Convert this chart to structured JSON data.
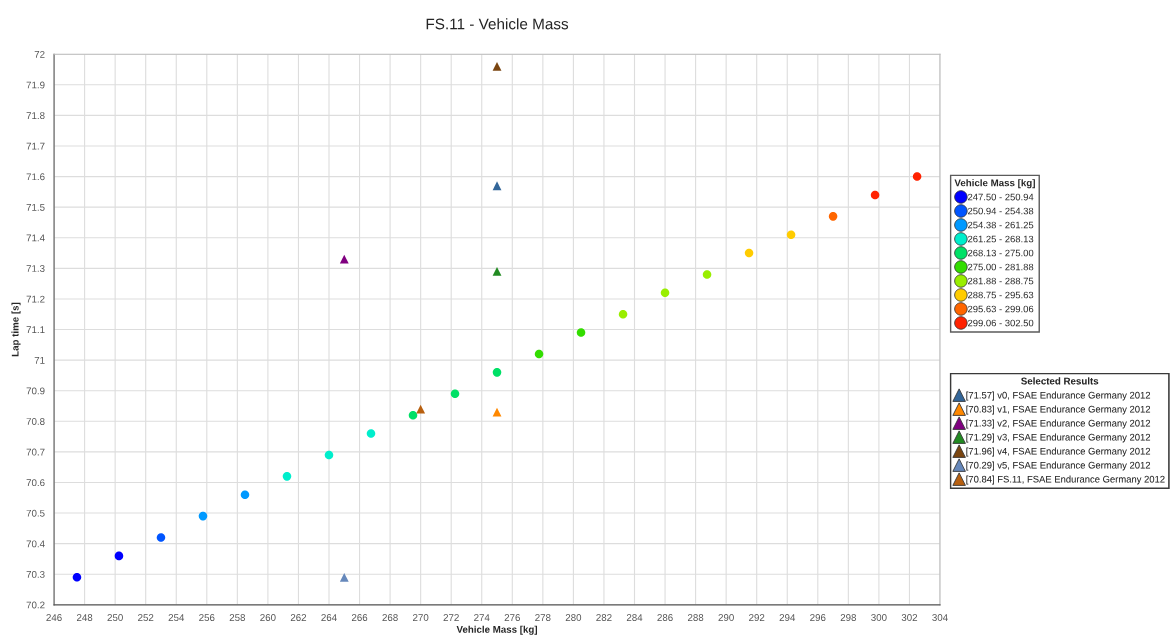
{
  "chart_data": {
    "type": "scatter",
    "title": "FS.11 - Vehicle Mass",
    "xlabel": "Vehicle Mass [kg]",
    "ylabel": "Lap time [s]",
    "legend_title": [
      "Vehicle Mass [kg]",
      "Selected Results"
    ],
    "legend": "right",
    "grid": true,
    "xlim": [
      246,
      304
    ],
    "xticks": [
      246,
      248,
      250,
      252,
      254,
      256,
      258,
      260,
      262,
      264,
      266,
      268,
      270,
      272,
      274,
      276,
      278,
      280,
      282,
      284,
      286,
      288,
      290,
      292,
      294,
      296,
      298,
      300,
      302,
      304
    ],
    "ylim": [
      70.2,
      72
    ],
    "yticks": [
      70.2,
      70.3,
      70.4,
      70.5,
      70.6,
      70.7,
      70.8,
      70.9,
      71,
      71.1,
      71.2,
      71.3,
      71.4,
      71.5,
      71.6,
      71.7,
      71.8,
      71.9,
      72
    ],
    "series": [
      {
        "name": "247.50 - 250.94",
        "color": "#0000ff",
        "marker": "circle",
        "x": [
          247.5,
          250.25
        ],
        "values": [
          70.29,
          70.36
        ]
      },
      {
        "name": "250.94 - 254.38",
        "color": "#0055ff",
        "marker": "circle",
        "x": [
          253.0
        ],
        "values": [
          70.42
        ]
      },
      {
        "name": "254.38 - 261.25",
        "color": "#0099ff",
        "marker": "circle",
        "x": [
          255.75,
          258.5
        ],
        "values": [
          70.49,
          70.56
        ]
      },
      {
        "name": "261.25 - 268.13",
        "color": "#00eecc",
        "marker": "circle",
        "x": [
          261.25,
          264.0,
          266.75
        ],
        "values": [
          70.62,
          70.69,
          70.76
        ]
      },
      {
        "name": "268.13 - 275.00",
        "color": "#00e066",
        "marker": "circle",
        "x": [
          269.5,
          272.25,
          275.0
        ],
        "values": [
          70.82,
          70.89,
          70.96
        ]
      },
      {
        "name": "275.00 - 281.88",
        "color": "#33dd00",
        "marker": "circle",
        "x": [
          277.75,
          280.5
        ],
        "values": [
          71.02,
          71.09
        ]
      },
      {
        "name": "281.88 - 288.75",
        "color": "#99ee00",
        "marker": "circle",
        "x": [
          283.25,
          286.0,
          288.75
        ],
        "values": [
          71.15,
          71.22,
          71.28
        ]
      },
      {
        "name": "288.75 - 295.63",
        "color": "#ffcc00",
        "marker": "circle",
        "x": [
          291.5,
          294.25
        ],
        "values": [
          71.35,
          71.41
        ]
      },
      {
        "name": "295.63 - 299.06",
        "color": "#ff6600",
        "marker": "circle",
        "x": [
          297.0
        ],
        "values": [
          71.47
        ]
      },
      {
        "name": "299.06 - 302.50",
        "color": "#ff2200",
        "marker": "circle",
        "x": [
          299.75,
          302.5
        ],
        "values": [
          71.54,
          71.6
        ]
      },
      {
        "name": "[71.57] v0, FSAE Endurance Germany 2012",
        "color": "#336699",
        "marker": "triangle",
        "x": [
          275.0
        ],
        "values": [
          71.57
        ]
      },
      {
        "name": "[70.83] v1, FSAE Endurance Germany 2012",
        "color": "#ff8800",
        "marker": "triangle",
        "x": [
          275.0
        ],
        "values": [
          70.83
        ]
      },
      {
        "name": "[71.33] v2, FSAE Endurance Germany 2012",
        "color": "#800080",
        "marker": "triangle",
        "x": [
          265.0
        ],
        "values": [
          71.33
        ]
      },
      {
        "name": "[71.29] v3, FSAE Endurance Germany 2012",
        "color": "#228b22",
        "marker": "triangle",
        "x": [
          275.0
        ],
        "values": [
          71.29
        ]
      },
      {
        "name": "[71.96] v4, FSAE Endurance Germany 2012",
        "color": "#7a4510",
        "marker": "triangle",
        "x": [
          275.0
        ],
        "values": [
          71.96
        ]
      },
      {
        "name": "[70.29] v5, FSAE Endurance Germany 2012",
        "color": "#6688bb",
        "marker": "triangle",
        "x": [
          265.0
        ],
        "values": [
          70.29
        ]
      },
      {
        "name": "[70.84] FS.11, FSAE Endurance Germany 2012",
        "color": "#b86010",
        "marker": "triangle",
        "x": [
          270.0
        ],
        "values": [
          70.84
        ]
      }
    ]
  }
}
